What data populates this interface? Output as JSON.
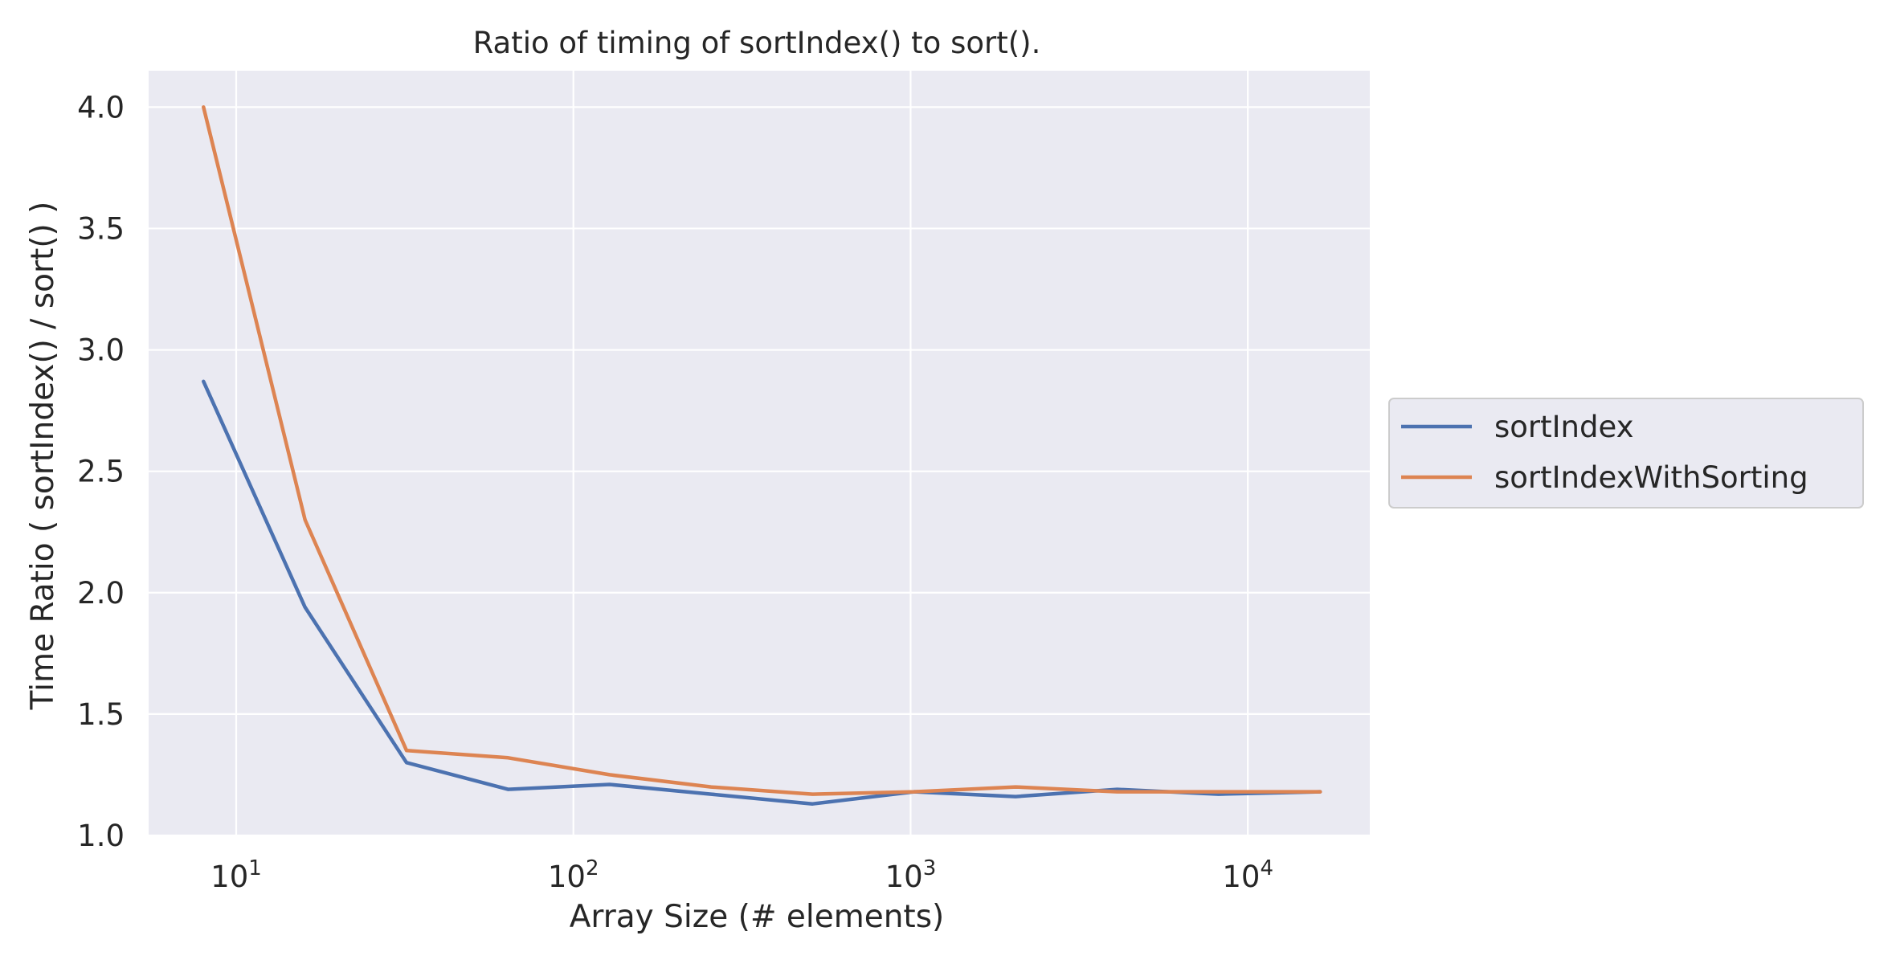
{
  "colors": {
    "plot_background": "#EAEAF2",
    "grid": "#FFFFFF",
    "text": "#262626",
    "legend_border": "#CCCCCC"
  },
  "chart_data": {
    "type": "line",
    "title": "Ratio of timing of sortIndex() to sort().",
    "xlabel": "Array Size (# elements)",
    "ylabel": "Time Ratio ( sortIndex() / sort() )",
    "xscale": "log",
    "xlim": [
      5.5,
      23000
    ],
    "ylim": [
      1.0,
      4.15
    ],
    "xticks": [
      {
        "value": 10,
        "base": "10",
        "exp": "1"
      },
      {
        "value": 100,
        "base": "10",
        "exp": "2"
      },
      {
        "value": 1000,
        "base": "10",
        "exp": "3"
      },
      {
        "value": 10000,
        "base": "10",
        "exp": "4"
      }
    ],
    "yticks": [
      {
        "value": 1.0,
        "label": "1.0"
      },
      {
        "value": 1.5,
        "label": "1.5"
      },
      {
        "value": 2.0,
        "label": "2.0"
      },
      {
        "value": 2.5,
        "label": "2.5"
      },
      {
        "value": 3.0,
        "label": "3.0"
      },
      {
        "value": 3.5,
        "label": "3.5"
      },
      {
        "value": 4.0,
        "label": "4.0"
      }
    ],
    "grid": true,
    "legend_position": "outside-right",
    "x": [
      8,
      16,
      32,
      64,
      128,
      256,
      512,
      1024,
      2048,
      4096,
      8192,
      16384
    ],
    "series": [
      {
        "name": "sortIndex",
        "color": "#4C72B0",
        "values": [
          2.87,
          1.94,
          1.3,
          1.19,
          1.21,
          1.17,
          1.13,
          1.18,
          1.16,
          1.19,
          1.17,
          1.18
        ]
      },
      {
        "name": "sortIndexWithSorting",
        "color": "#DD8452",
        "values": [
          4.0,
          2.3,
          1.35,
          1.32,
          1.25,
          1.2,
          1.17,
          1.18,
          1.2,
          1.18,
          1.18,
          1.18
        ]
      }
    ]
  }
}
